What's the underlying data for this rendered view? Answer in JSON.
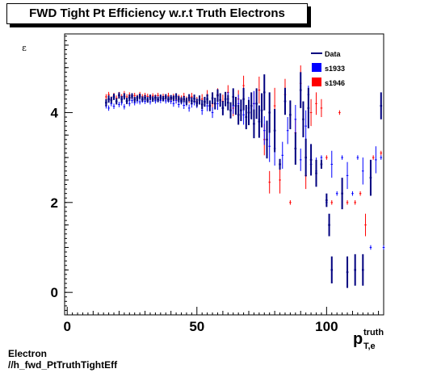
{
  "title": "FWD Tight Pt Efficiency w.r.t Truth Electrons",
  "footer": {
    "line1": "Electron",
    "line2": "//h_fwd_PtTruthTightEff"
  },
  "colors": {
    "data": "#00007f",
    "s1933": "#0000ff",
    "s1946": "#ff0000"
  },
  "chart_data": {
    "type": "scatter",
    "xlabel_main": "p",
    "xlabel_sup": "truth",
    "xlabel_sub": "T,e",
    "ylabel": "ε",
    "xlim": [
      -1,
      122
    ],
    "ylim": [
      -0.5,
      5.75
    ],
    "xticks": [
      0,
      50,
      100
    ],
    "yticks": [
      0,
      2,
      4
    ],
    "legend": [
      "Data",
      "s1933",
      "s1946"
    ],
    "legend_position": "top-right",
    "series": [
      {
        "name": "Data",
        "points": [
          [
            15,
            4.22,
            0.08
          ],
          [
            16,
            4.3,
            0.08
          ],
          [
            17,
            4.28,
            0.07
          ],
          [
            18,
            4.35,
            0.07
          ],
          [
            19,
            4.25,
            0.07
          ],
          [
            20,
            4.38,
            0.07
          ],
          [
            21,
            4.3,
            0.07
          ],
          [
            22,
            4.36,
            0.07
          ],
          [
            23,
            4.26,
            0.07
          ],
          [
            24,
            4.33,
            0.07
          ],
          [
            25,
            4.37,
            0.06
          ],
          [
            26,
            4.29,
            0.06
          ],
          [
            27,
            4.32,
            0.06
          ],
          [
            28,
            4.36,
            0.06
          ],
          [
            29,
            4.3,
            0.06
          ],
          [
            30,
            4.33,
            0.06
          ],
          [
            31,
            4.28,
            0.06
          ],
          [
            32,
            4.34,
            0.06
          ],
          [
            33,
            4.3,
            0.06
          ],
          [
            34,
            4.33,
            0.06
          ],
          [
            35,
            4.29,
            0.06
          ],
          [
            36,
            4.34,
            0.06
          ],
          [
            37,
            4.31,
            0.06
          ],
          [
            38,
            4.35,
            0.06
          ],
          [
            39,
            4.3,
            0.06
          ],
          [
            40,
            4.33,
            0.06
          ],
          [
            41,
            4.32,
            0.06
          ],
          [
            42,
            4.36,
            0.07
          ],
          [
            43,
            4.3,
            0.07
          ],
          [
            44,
            4.27,
            0.07
          ],
          [
            45,
            4.3,
            0.07
          ],
          [
            46,
            4.25,
            0.08
          ],
          [
            47,
            4.33,
            0.08
          ],
          [
            48,
            4.26,
            0.08
          ],
          [
            49,
            4.31,
            0.09
          ],
          [
            50,
            4.22,
            0.09
          ],
          [
            51,
            4.28,
            0.1
          ],
          [
            52,
            4.18,
            0.1
          ],
          [
            53,
            4.24,
            0.11
          ],
          [
            54,
            4.3,
            0.11
          ],
          [
            55,
            4.15,
            0.12
          ],
          [
            56,
            4.32,
            0.13
          ],
          [
            57,
            4.2,
            0.13
          ],
          [
            58,
            4.38,
            0.14
          ],
          [
            59,
            4.28,
            0.15
          ],
          [
            60,
            4.1,
            0.16
          ],
          [
            61,
            4.3,
            0.16
          ],
          [
            62,
            4.22,
            0.17
          ],
          [
            63,
            4.05,
            0.18
          ],
          [
            64,
            4.35,
            0.19
          ],
          [
            65,
            4.15,
            0.2
          ],
          [
            66,
            3.95,
            0.22
          ],
          [
            67,
            4.05,
            0.24
          ],
          [
            68,
            4.3,
            0.25
          ],
          [
            69,
            3.9,
            0.27
          ],
          [
            70,
            4.0,
            0.28
          ],
          [
            71,
            4.15,
            0.3
          ],
          [
            72,
            3.75,
            0.32
          ],
          [
            73,
            4.2,
            0.34
          ],
          [
            74,
            3.8,
            0.36
          ],
          [
            75,
            4.05,
            0.38
          ],
          [
            76,
            4.45,
            0.4
          ],
          [
            77,
            3.4,
            0.42
          ],
          [
            78,
            4.0,
            0.45
          ],
          [
            80,
            3.6,
            0.48
          ],
          [
            82,
            2.85,
            0.12
          ],
          [
            84,
            4.25,
            0.3
          ],
          [
            86,
            3.95,
            0.32
          ],
          [
            88,
            3.2,
            0.36
          ],
          [
            90,
            4.5,
            0.4
          ],
          [
            91,
            3.85,
            0.4
          ],
          [
            92,
            3.0,
            0.42
          ],
          [
            93,
            4.1,
            0.45
          ],
          [
            94,
            2.95,
            0.35
          ],
          [
            96,
            2.65,
            0.3
          ],
          [
            98,
            2.85,
            0.1
          ],
          [
            100,
            2.05,
            0.15
          ],
          [
            101,
            1.5,
            0.25
          ],
          [
            102,
            0.5,
            0.3
          ],
          [
            106,
            2.2,
            0.35
          ],
          [
            108,
            0.45,
            0.35
          ],
          [
            111,
            0.5,
            0.35
          ],
          [
            114,
            0.5,
            0.35
          ],
          [
            117,
            2.55,
            0.4
          ],
          [
            121,
            4.15,
            0.3
          ]
        ]
      },
      {
        "name": "s1933",
        "points": [
          [
            15,
            4.15,
            0.06
          ],
          [
            16,
            4.1,
            0.06
          ],
          [
            17,
            4.2,
            0.06
          ],
          [
            18,
            4.14,
            0.06
          ],
          [
            19,
            4.25,
            0.06
          ],
          [
            20,
            4.18,
            0.06
          ],
          [
            21,
            4.22,
            0.06
          ],
          [
            22,
            4.13,
            0.06
          ],
          [
            23,
            4.25,
            0.06
          ],
          [
            24,
            4.2,
            0.06
          ],
          [
            25,
            4.27,
            0.06
          ],
          [
            26,
            4.22,
            0.06
          ],
          [
            27,
            4.26,
            0.06
          ],
          [
            28,
            4.24,
            0.06
          ],
          [
            29,
            4.28,
            0.06
          ],
          [
            30,
            4.25,
            0.06
          ],
          [
            31,
            4.29,
            0.06
          ],
          [
            32,
            4.24,
            0.06
          ],
          [
            33,
            4.3,
            0.06
          ],
          [
            34,
            4.26,
            0.06
          ],
          [
            35,
            4.3,
            0.06
          ],
          [
            36,
            4.27,
            0.06
          ],
          [
            37,
            4.31,
            0.06
          ],
          [
            38,
            4.26,
            0.06
          ],
          [
            39,
            4.28,
            0.06
          ],
          [
            40,
            4.25,
            0.06
          ],
          [
            41,
            4.2,
            0.07
          ],
          [
            42,
            4.27,
            0.07
          ],
          [
            43,
            4.18,
            0.07
          ],
          [
            44,
            4.25,
            0.07
          ],
          [
            45,
            4.16,
            0.08
          ],
          [
            46,
            4.22,
            0.08
          ],
          [
            47,
            4.1,
            0.08
          ],
          [
            48,
            4.2,
            0.09
          ],
          [
            49,
            4.25,
            0.09
          ],
          [
            50,
            4.2,
            0.1
          ],
          [
            52,
            4.05,
            0.1
          ],
          [
            54,
            4.15,
            0.12
          ],
          [
            56,
            4.0,
            0.12
          ],
          [
            58,
            4.2,
            0.14
          ],
          [
            60,
            4.1,
            0.15
          ],
          [
            62,
            4.3,
            0.16
          ],
          [
            64,
            4.15,
            0.18
          ],
          [
            66,
            4.2,
            0.2
          ],
          [
            68,
            3.95,
            0.22
          ],
          [
            70,
            4.1,
            0.25
          ],
          [
            72,
            4.2,
            0.28
          ],
          [
            74,
            3.85,
            0.3
          ],
          [
            76,
            3.6,
            0.32
          ],
          [
            78,
            3.25,
            0.35
          ],
          [
            80,
            3.2,
            0.38
          ],
          [
            83,
            3.05,
            0.3
          ],
          [
            85,
            3.6,
            0.3
          ],
          [
            88,
            3.85,
            0.32
          ],
          [
            90,
            2.95,
            0.25
          ],
          [
            92,
            3.7,
            0.35
          ],
          [
            93,
            4.4,
            0.2
          ],
          [
            94,
            2.85,
            0.25
          ],
          [
            96,
            2.7,
            0.3
          ],
          [
            98,
            3.0,
            0.05
          ],
          [
            100,
            2.0,
            0.05
          ],
          [
            102,
            2.85,
            0.3
          ],
          [
            104,
            2.2,
            0.05
          ],
          [
            106,
            3.0,
            0.05
          ],
          [
            108,
            2.6,
            0.3
          ],
          [
            110,
            2.2,
            0.05
          ],
          [
            112,
            3.0,
            0.05
          ],
          [
            114,
            2.7,
            0.3
          ],
          [
            117,
            1.0,
            0.05
          ],
          [
            119,
            2.95,
            0.3
          ],
          [
            121,
            3.0,
            0.05
          ],
          [
            122,
            1.0,
            0.05
          ]
        ]
      },
      {
        "name": "s1946",
        "points": [
          [
            15,
            4.35,
            0.06
          ],
          [
            16,
            4.4,
            0.06
          ],
          [
            17,
            4.3,
            0.06
          ],
          [
            18,
            4.38,
            0.06
          ],
          [
            19,
            4.32,
            0.06
          ],
          [
            20,
            4.4,
            0.06
          ],
          [
            21,
            4.35,
            0.06
          ],
          [
            22,
            4.42,
            0.06
          ],
          [
            23,
            4.35,
            0.06
          ],
          [
            24,
            4.39,
            0.06
          ],
          [
            25,
            4.33,
            0.06
          ],
          [
            26,
            4.38,
            0.06
          ],
          [
            27,
            4.34,
            0.06
          ],
          [
            28,
            4.4,
            0.06
          ],
          [
            29,
            4.35,
            0.06
          ],
          [
            30,
            4.38,
            0.06
          ],
          [
            31,
            4.36,
            0.06
          ],
          [
            32,
            4.33,
            0.06
          ],
          [
            33,
            4.37,
            0.06
          ],
          [
            34,
            4.34,
            0.06
          ],
          [
            35,
            4.38,
            0.06
          ],
          [
            36,
            4.33,
            0.06
          ],
          [
            37,
            4.36,
            0.06
          ],
          [
            38,
            4.32,
            0.06
          ],
          [
            39,
            4.37,
            0.07
          ],
          [
            40,
            4.3,
            0.07
          ],
          [
            41,
            4.35,
            0.07
          ],
          [
            42,
            4.28,
            0.07
          ],
          [
            43,
            4.33,
            0.07
          ],
          [
            44,
            4.3,
            0.08
          ],
          [
            45,
            4.36,
            0.08
          ],
          [
            46,
            4.28,
            0.08
          ],
          [
            47,
            4.3,
            0.09
          ],
          [
            48,
            4.35,
            0.09
          ],
          [
            50,
            4.25,
            0.1
          ],
          [
            52,
            4.3,
            0.11
          ],
          [
            54,
            4.38,
            0.12
          ],
          [
            56,
            4.2,
            0.13
          ],
          [
            58,
            4.4,
            0.14
          ],
          [
            60,
            4.25,
            0.15
          ],
          [
            62,
            4.45,
            0.16
          ],
          [
            64,
            4.1,
            0.18
          ],
          [
            66,
            4.3,
            0.2
          ],
          [
            68,
            4.6,
            0.22
          ],
          [
            70,
            4.0,
            0.24
          ],
          [
            72,
            4.2,
            0.27
          ],
          [
            74,
            4.5,
            0.3
          ],
          [
            76,
            3.4,
            0.35
          ],
          [
            78,
            2.45,
            0.25
          ],
          [
            80,
            4.15,
            0.4
          ],
          [
            82,
            2.5,
            0.3
          ],
          [
            84,
            4.4,
            0.35
          ],
          [
            86,
            2.0,
            0.05
          ],
          [
            88,
            3.55,
            0.3
          ],
          [
            90,
            4.65,
            0.4
          ],
          [
            92,
            2.6,
            0.3
          ],
          [
            94,
            4.0,
            0.3
          ],
          [
            96,
            4.2,
            0.25
          ],
          [
            98,
            4.1,
            0.2
          ],
          [
            100,
            3.0,
            0.05
          ],
          [
            102,
            2.0,
            0.05
          ],
          [
            105,
            4.0,
            0.05
          ],
          [
            108,
            2.0,
            0.05
          ],
          [
            111,
            2.0,
            0.05
          ],
          [
            113,
            2.2,
            0.05
          ],
          [
            115,
            1.5,
            0.25
          ],
          [
            118,
            3.0,
            0.05
          ],
          [
            121,
            3.1,
            0.05
          ]
        ]
      }
    ]
  }
}
